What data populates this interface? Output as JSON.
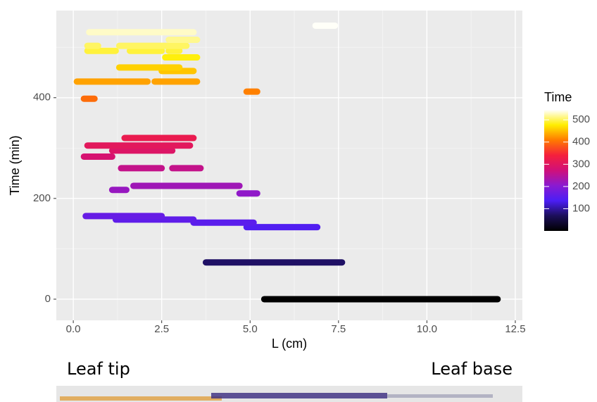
{
  "chart_data": {
    "type": "segment",
    "x_label": "L (cm)",
    "y_label": "Time (min)",
    "legend_title": "Time",
    "xlim": [
      -0.48,
      12.7
    ],
    "ylim": [
      -42,
      573
    ],
    "xticks": [
      {
        "value": 0,
        "label": "0.0"
      },
      {
        "value": 2.5,
        "label": "2.5"
      },
      {
        "value": 5,
        "label": "5.0"
      },
      {
        "value": 7.5,
        "label": "7.5"
      },
      {
        "value": 10,
        "label": "10.0"
      },
      {
        "value": 12.5,
        "label": "12.5"
      }
    ],
    "yticks": [
      0,
      200,
      400
    ],
    "grid": true,
    "colorscale": [
      "#000000",
      "#1c0f5a",
      "#4b1ef5",
      "#8a1ad0",
      "#d0107a",
      "#f5203c",
      "#ff7a00",
      "#ffee00",
      "#ffffff"
    ],
    "clim": [
      0,
      545
    ],
    "cticks": [
      100,
      200,
      300,
      400,
      500
    ],
    "segments": {
      "time": [
        0,
        73,
        143,
        152,
        158,
        165,
        210,
        217,
        225,
        260,
        260,
        283,
        295,
        305,
        320,
        398,
        412,
        432,
        432,
        453,
        460,
        480,
        493,
        493,
        493,
        503,
        503,
        515,
        530,
        543
      ],
      "x_start": [
        5.4,
        3.75,
        4.9,
        3.4,
        1.2,
        0.35,
        4.7,
        1.1,
        1.7,
        1.35,
        2.8,
        0.3,
        1.1,
        0.4,
        1.45,
        0.3,
        4.9,
        0.1,
        2.3,
        2.5,
        1.3,
        2.6,
        0.4,
        1.6,
        2.7,
        0.4,
        1.3,
        2.7,
        0.45,
        6.85
      ],
      "x_end": [
        12.0,
        7.6,
        6.9,
        5.1,
        3.4,
        2.5,
        5.2,
        1.5,
        4.7,
        2.5,
        3.6,
        1.1,
        2.8,
        3.3,
        3.4,
        0.6,
        5.2,
        2.1,
        3.5,
        3.4,
        3.0,
        3.5,
        1.2,
        2.5,
        3.0,
        0.7,
        3.2,
        3.5,
        3.4,
        7.4
      ]
    }
  },
  "annotations": {
    "left": "Leaf tip",
    "right": "Leaf base"
  }
}
